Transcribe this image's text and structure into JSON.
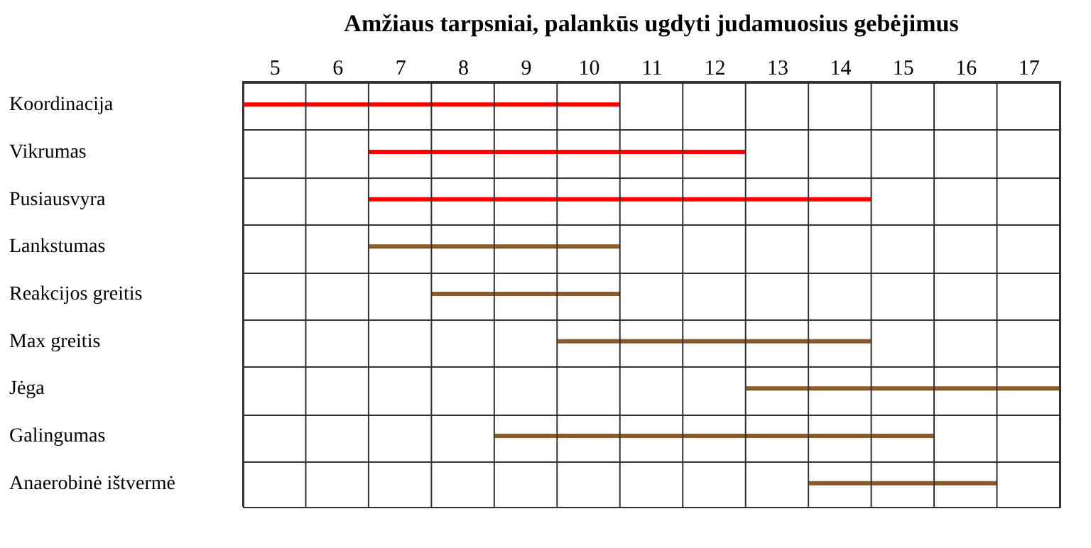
{
  "chart_data": {
    "type": "bar",
    "orientation": "horizontal",
    "title": "Amžiaus tarpsniai, palankūs ugdyti judamuosius gebėjimus",
    "categories": [
      "Koordinacija",
      "Vikrumas",
      "Pusiausvyra",
      "Lankstumas",
      "Reakcijos greitis",
      "Max greitis",
      "Jėga",
      "Galingumas",
      "Anaerobinė ištvermė"
    ],
    "base": [
      5,
      7,
      7,
      7,
      8,
      10,
      13,
      9,
      14
    ],
    "values": [
      6,
      6,
      8,
      4,
      3,
      5,
      5,
      7,
      3
    ],
    "colors": [
      "#ff0000",
      "#ff0000",
      "#ff0000",
      "#8b5a2b",
      "#8b5a2b",
      "#8b5a2b",
      "#8b5a2b",
      "#8b5a2b",
      "#8b5a2b"
    ],
    "xlim": [
      5,
      18
    ],
    "xticks": [
      {
        "value": 5,
        "label": null
      },
      {
        "value": 6,
        "label": null
      },
      {
        "value": 7,
        "label": null
      },
      {
        "value": 8,
        "label": null
      },
      {
        "value": 9,
        "label": null
      },
      {
        "value": 10,
        "label": null
      },
      {
        "value": 11,
        "label": null
      },
      {
        "value": 12,
        "label": null
      },
      {
        "value": 13,
        "label": null
      },
      {
        "value": 14,
        "label": null
      },
      {
        "value": 15,
        "label": null
      },
      {
        "value": 16,
        "label": null
      },
      {
        "value": 17,
        "label": null
      },
      {
        "value": 18,
        "label": null
      },
      {
        "value": 5.5,
        "label": "5"
      },
      {
        "value": 6.5,
        "label": "6"
      },
      {
        "value": 7.5,
        "label": "7"
      },
      {
        "value": 8.5,
        "label": "8"
      },
      {
        "value": 9.5,
        "label": "9"
      },
      {
        "value": 10.5,
        "label": "10"
      },
      {
        "value": 11.5,
        "label": "11"
      },
      {
        "value": 12.5,
        "label": "12"
      },
      {
        "value": 13.5,
        "label": "13"
      },
      {
        "value": 14.5,
        "label": "14"
      },
      {
        "value": 15.5,
        "label": "15"
      },
      {
        "value": 16.5,
        "label": "16"
      },
      {
        "value": 17.5,
        "label": "17"
      }
    ],
    "grid": true
  }
}
